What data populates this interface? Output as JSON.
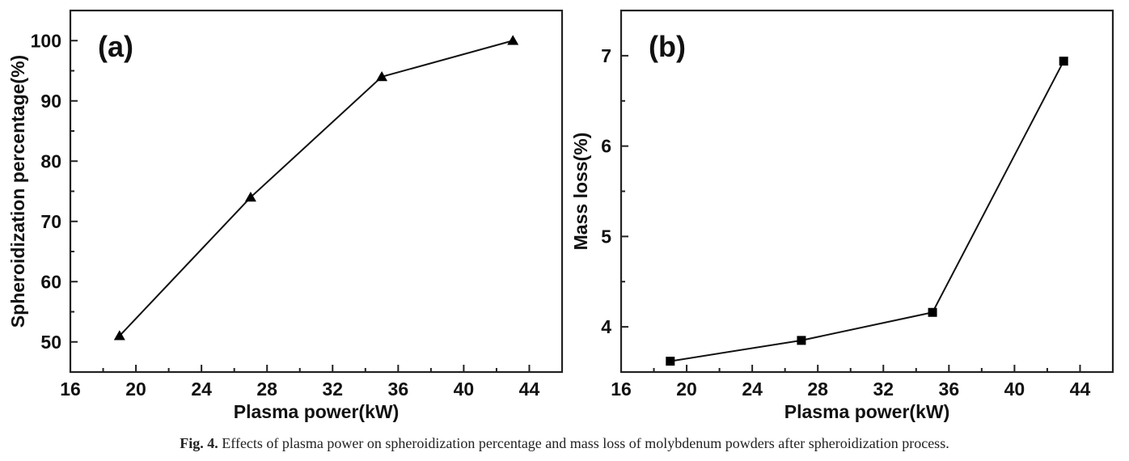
{
  "chart_data": [
    {
      "type": "line",
      "panel_label": "(a)",
      "title": "",
      "xlabel": "Plasma power(kW)",
      "ylabel": "Spheroidization percentage(%)",
      "xlim": [
        16,
        46
      ],
      "ylim": [
        45,
        105
      ],
      "x_major_ticks": [
        16,
        20,
        24,
        28,
        32,
        36,
        40,
        44
      ],
      "x_minor_ticks": [
        18,
        22,
        26,
        30,
        34,
        38,
        42
      ],
      "y_major_ticks": [
        50,
        60,
        70,
        80,
        90,
        100
      ],
      "y_minor_ticks": [
        55,
        65,
        75,
        85,
        95
      ],
      "grid": false,
      "legend": "none",
      "series": [
        {
          "name": "Spheroidization percentage",
          "marker": "triangle",
          "x": [
            19,
            27,
            35,
            43
          ],
          "y": [
            51,
            74,
            94,
            100
          ]
        }
      ]
    },
    {
      "type": "line",
      "panel_label": "(b)",
      "title": "",
      "xlabel": "Plasma power(kW)",
      "ylabel": "Mass loss(%)",
      "xlim": [
        16,
        46
      ],
      "ylim": [
        3.5,
        7.5
      ],
      "x_major_ticks": [
        16,
        20,
        24,
        28,
        32,
        36,
        40,
        44
      ],
      "x_minor_ticks": [
        18,
        22,
        26,
        30,
        34,
        38,
        42
      ],
      "y_major_ticks": [
        4,
        5,
        6,
        7
      ],
      "y_minor_ticks": [
        4.5,
        5.5,
        6.5
      ],
      "grid": false,
      "legend": "none",
      "series": [
        {
          "name": "Mass loss",
          "marker": "square",
          "x": [
            19,
            27,
            35,
            43
          ],
          "y": [
            3.62,
            3.85,
            4.16,
            6.94
          ]
        }
      ]
    }
  ],
  "caption": {
    "label": "Fig. 4.",
    "text": " Effects of plasma power on spheroidization percentage and mass loss of molybdenum powders after spheroidization process."
  }
}
